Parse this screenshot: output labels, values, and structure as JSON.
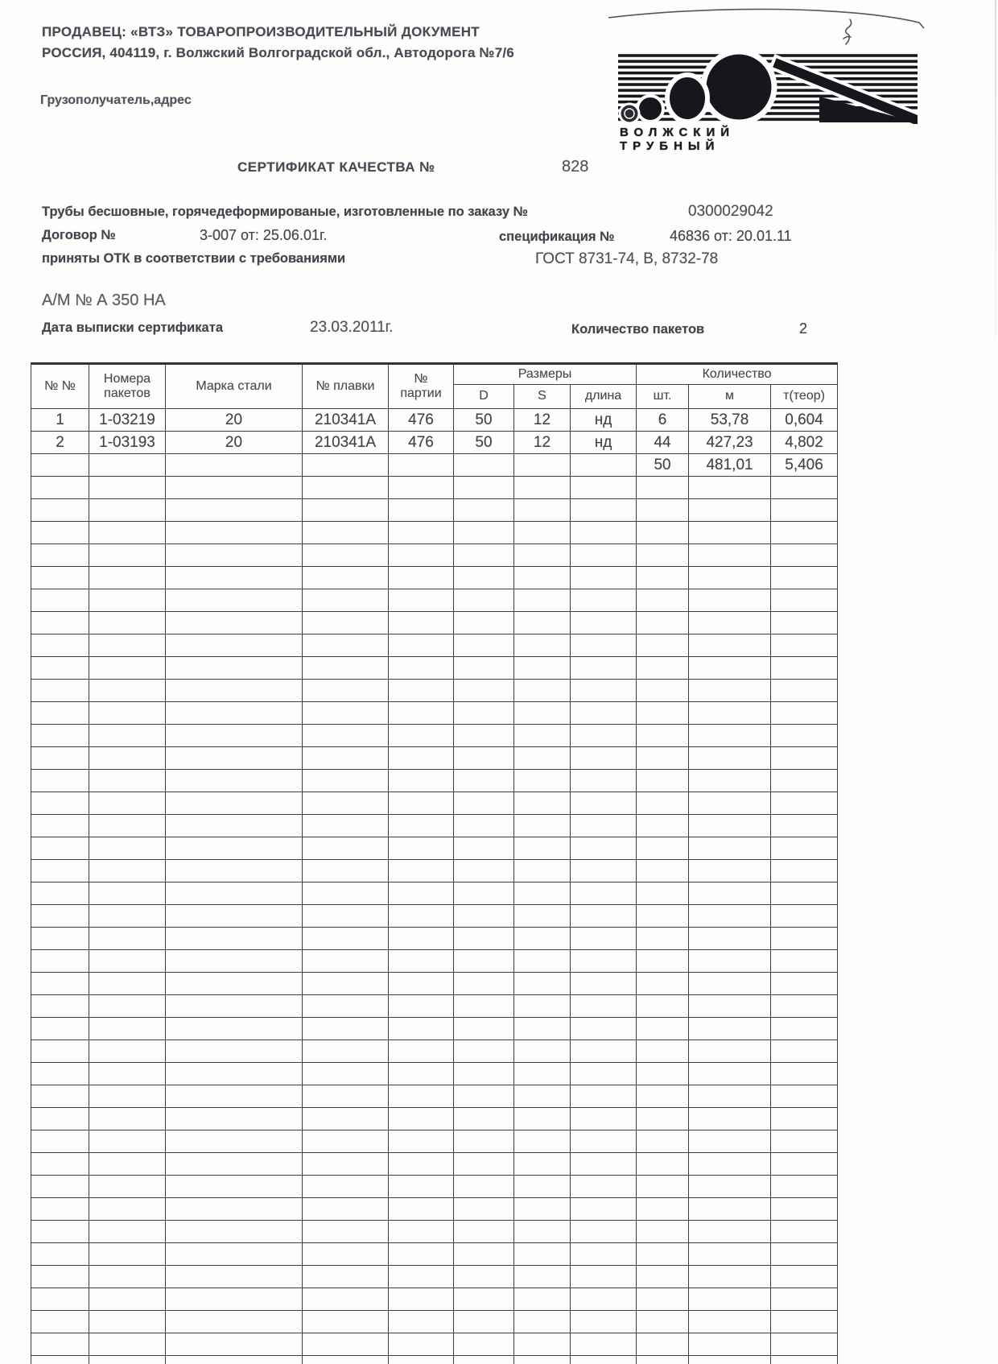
{
  "header": {
    "seller_line1": "ПРОДАВЕЦ:  «ВТЗ» ТОВАРОПРОИЗВОДИТЕЛЬНЫЙ ДОКУМЕНТ",
    "seller_line2": "РОССИЯ, 404119, г. Волжский  Волгоградской обл.,  Автодорога №7/6",
    "consignee_label": "Грузополучатель,адрес"
  },
  "logo": {
    "name": "volzhsky-trubny-pipe-logo",
    "text": "ВОЛЖСКИЙ ТРУБНЫЙ"
  },
  "title": {
    "label": "СЕРТИФИКАТ КАЧЕСТВА №",
    "number": "828"
  },
  "order": {
    "product_label": "Трубы бесшовные, горячедеформированые, изготовленные по заказу  №",
    "order_number": "0300029042",
    "contract_label": "Договор №",
    "contract_value": "3-007  от:  25.06.01г.",
    "spec_label": "спецификация №",
    "spec_value": "46836 от: 20.01.11",
    "otk_label": "приняты ОТК в соответствии с требованиями",
    "gost_value": "ГОСТ 8731-74, В, 8732-78",
    "am_line": "А/М № А 350 НА",
    "date_label": "Дата выписки сертификата",
    "date_value": "23.03.2011г.",
    "packages_label": "Количество пакетов",
    "packages_value": "2"
  },
  "table": {
    "headers": {
      "num": "№ №",
      "packets": "Номера пакетов",
      "steel": "Марка стали",
      "melt": "№ плавки",
      "party_top": "№",
      "party_bottom": "партии",
      "sizes_group": "Размеры",
      "d": "D",
      "s": "S",
      "length": "длина",
      "qty_group": "Количество",
      "pcs": "шт.",
      "m": "м",
      "t": "т(теор)"
    },
    "rows": [
      [
        "1",
        "1-03219",
        "20",
        "210341А",
        "476",
        "50",
        "12",
        "нд",
        "6",
        "53,78",
        "0,604"
      ],
      [
        "2",
        "1-03193",
        "20",
        "210341А",
        "476",
        "50",
        "12",
        "нд",
        "44",
        "427,23",
        "4,802"
      ]
    ],
    "totals_row": [
      "",
      "",
      "",
      "",
      "",
      "",
      "",
      "",
      "50",
      "481,01",
      "5,406"
    ],
    "empty_row_count": 40
  }
}
